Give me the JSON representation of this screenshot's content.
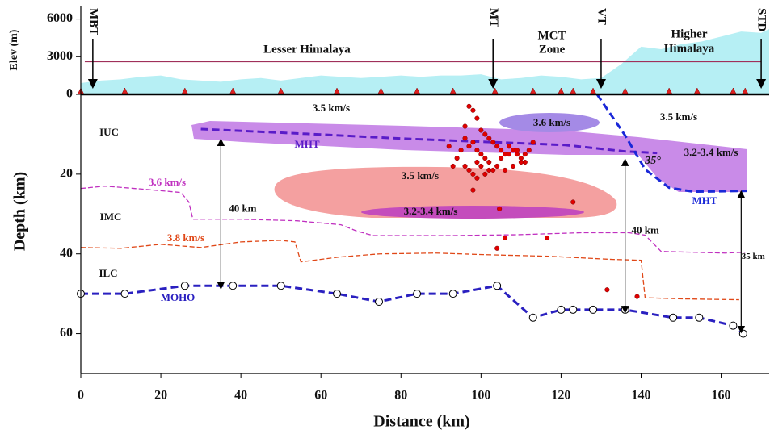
{
  "chart_data": {
    "type": "section",
    "xlabel": "Distance (km)",
    "xlim": [
      0,
      172
    ],
    "xticks": [
      0,
      20,
      40,
      60,
      80,
      100,
      120,
      140,
      160
    ],
    "elevation": {
      "ylabel": "Elev (m)",
      "ylim": [
        0,
        7000
      ],
      "yticks": [
        3000,
        6000
      ],
      "color": "#b6eff4",
      "x": [
        0,
        5,
        10,
        15,
        20,
        25,
        30,
        35,
        40,
        45,
        50,
        55,
        60,
        65,
        70,
        75,
        80,
        85,
        90,
        95,
        100,
        105,
        110,
        115,
        120,
        125,
        130,
        135,
        140,
        145,
        150,
        155,
        160,
        165,
        170,
        172
      ],
      "values": [
        900,
        1100,
        1200,
        1400,
        1500,
        1200,
        1100,
        1000,
        1200,
        1300,
        1100,
        1300,
        1500,
        1400,
        1300,
        1400,
        1500,
        1400,
        1500,
        1500,
        1600,
        1200,
        1300,
        1500,
        1400,
        1200,
        1300,
        2400,
        3800,
        3600,
        4000,
        4200,
        4600,
        5000,
        4900,
        5200
      ],
      "reference": 2600,
      "reference_color": "#a0305a",
      "stations": [
        0,
        11,
        26,
        38,
        50,
        64,
        75,
        84,
        93,
        103.5,
        113,
        120,
        123,
        128,
        136,
        147,
        154,
        163,
        166
      ],
      "station_color": "#e02020",
      "faults": [
        {
          "label": "MBT",
          "x": 3
        },
        {
          "label": "MT",
          "x": 103
        },
        {
          "label": "VT",
          "x": 130
        },
        {
          "label": "STD",
          "x": 170
        }
      ],
      "region_labels": [
        "Lesser Himalaya",
        "MCT",
        "Zone",
        "Higher",
        "Himalaya"
      ]
    },
    "depth_section": {
      "ylabel": "Depth (km)",
      "ylim": [
        0,
        70
      ],
      "yticks": [
        0,
        20,
        40,
        60
      ],
      "series": [
        {
          "name": "MOHO",
          "color": "#2a20c0",
          "markers": true,
          "x": [
            0,
            11,
            26,
            38,
            50,
            64,
            74.5,
            84,
            93,
            104,
            113,
            120,
            123,
            128,
            136,
            148,
            154.5,
            163,
            165.5
          ],
          "values": [
            50,
            50,
            48,
            48,
            48,
            50,
            52,
            50,
            50,
            48,
            56,
            54,
            54,
            54,
            54,
            56,
            56,
            58,
            60
          ]
        },
        {
          "name": "3.6 km/s",
          "color": "#c030c0",
          "markers": false,
          "x": [
            0,
            6,
            16,
            25,
            27,
            28,
            32,
            40,
            54,
            65,
            69,
            73,
            93,
            109,
            125,
            137,
            141,
            145,
            161,
            166
          ],
          "values": [
            23.6,
            23,
            23.8,
            24.6,
            27,
            31.3,
            31.3,
            31.3,
            31.7,
            32.7,
            34.3,
            35.4,
            35.4,
            35.2,
            34.7,
            34.7,
            35.3,
            39.4,
            39.8,
            39.6
          ]
        },
        {
          "name": "3.8 km/s",
          "color": "#e04818",
          "markers": false,
          "x": [
            0,
            10,
            20,
            30,
            40,
            50,
            53.5,
            55,
            64.6,
            74.7,
            88.8,
            101,
            117,
            133,
            140,
            141,
            151,
            164.5
          ],
          "values": [
            38.4,
            38.6,
            37.6,
            38.4,
            37,
            36.6,
            37,
            42,
            40.8,
            40,
            39.8,
            40.2,
            40.6,
            41.4,
            41.6,
            51,
            51.3,
            51.5
          ]
        },
        {
          "name": "MHT",
          "color": "#5a1cc8",
          "markers": false,
          "x": [
            30,
            56.5,
            80.7,
            101,
            121,
            136,
            144
          ],
          "values": [
            8.7,
            9.9,
            11.1,
            11.9,
            12.7,
            14.3,
            14.7
          ]
        },
        {
          "name": "MHT",
          "color": "#1a28d8",
          "markers": false,
          "x": [
            129,
            136,
            141,
            147,
            153,
            166.5
          ],
          "values": [
            0,
            10.3,
            18.8,
            23.4,
            24.4,
            24.2
          ]
        }
      ],
      "earthquakes": {
        "color": "#e00000",
        "x": [
          97,
          98,
          99,
          96,
          100,
          101,
          102,
          98,
          97,
          99,
          103,
          104,
          105,
          106,
          107,
          108,
          109,
          110,
          111,
          112,
          113,
          100,
          101,
          102,
          95,
          94,
          93,
          96,
          97,
          99,
          100,
          102,
          104,
          106,
          108,
          110,
          98,
          99,
          101,
          103,
          105,
          107,
          109,
          111,
          92,
          96,
          104,
          106,
          116.5,
          131.5,
          139,
          123,
          98,
          104.6
        ],
        "values": [
          3,
          4,
          6,
          8,
          9,
          10,
          11,
          12,
          13,
          14,
          12,
          13,
          14,
          15,
          13,
          14,
          15,
          16,
          17,
          14,
          12,
          15,
          16,
          17,
          14,
          16,
          18,
          18,
          19,
          17,
          18,
          19,
          18,
          19,
          18,
          17,
          20,
          21,
          20,
          19,
          16,
          15,
          14,
          15,
          13,
          11,
          38.6,
          36,
          36,
          49,
          50.7,
          27,
          24,
          28.7
        ]
      },
      "annotations": [
        "3.5 km/s",
        "3.6 km/s",
        "3.5 km/s",
        "3.2-3.4 km/s",
        "3.5 km/s",
        "3.2-3.4 km/s",
        "IUC",
        "IMC",
        "ILC",
        "35°"
      ],
      "measures": [
        {
          "label": "40 km",
          "x": 35,
          "top": 12,
          "bottom": 48
        },
        {
          "label": "40 km",
          "x": 136,
          "top": 17,
          "bottom": 54
        },
        {
          "label": "35 km",
          "x": 165,
          "top": 25,
          "bottom": 59
        }
      ]
    }
  }
}
